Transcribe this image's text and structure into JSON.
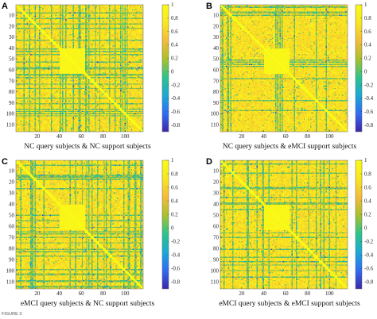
{
  "figure_label": "FIGURE 3",
  "colors": {
    "colormap": [
      "#3e26a8",
      "#2f6cf4",
      "#1aa9d6",
      "#2bc48a",
      "#a8c12b",
      "#f4bb38",
      "#f8e720",
      "#f9fb15"
    ],
    "tick": "#333333"
  },
  "chart_data": [
    {
      "type": "heatmap",
      "panel": "A",
      "title": "NC query subjects & NC support subjects",
      "xticks": [
        20,
        40,
        60,
        80,
        100
      ],
      "yticks": [
        10,
        20,
        30,
        40,
        50,
        60,
        70,
        80,
        90,
        100,
        110
      ],
      "matrix_size": 116,
      "colorbar_ticks": [
        1,
        0.8,
        0.6,
        0.4,
        0.2,
        0,
        -0.2,
        -0.4,
        -0.6,
        -0.8
      ],
      "value_range": [
        -0.9,
        1
      ]
    },
    {
      "type": "heatmap",
      "panel": "B",
      "title": "NC query subjects & eMCI support subjects",
      "xticks": [
        20,
        40,
        60,
        80,
        100
      ],
      "yticks": [
        10,
        20,
        30,
        40,
        50,
        60,
        70,
        80,
        90,
        100,
        110
      ],
      "matrix_size": 116,
      "colorbar_ticks": [
        1,
        0.8,
        0.6,
        0.4,
        0.2,
        0,
        -0.2,
        -0.4,
        -0.6,
        -0.8
      ],
      "value_range": [
        -0.9,
        1
      ]
    },
    {
      "type": "heatmap",
      "panel": "C",
      "title": "eMCI query subjects & NC support subjects",
      "xticks": [
        20,
        40,
        60,
        80,
        100
      ],
      "yticks": [
        10,
        20,
        30,
        40,
        50,
        60,
        70,
        80,
        90,
        100,
        110
      ],
      "matrix_size": 116,
      "colorbar_ticks": [
        1,
        0.8,
        0.6,
        0.4,
        0.2,
        0,
        -0.2,
        -0.4,
        -0.6,
        -0.8
      ],
      "value_range": [
        -0.9,
        1
      ]
    },
    {
      "type": "heatmap",
      "panel": "D",
      "title": "eMCI query subjects & eMCI support subjects",
      "xticks": [
        20,
        40,
        60,
        80,
        100
      ],
      "yticks": [
        10,
        20,
        30,
        40,
        50,
        60,
        70,
        80,
        90,
        100,
        110
      ],
      "matrix_size": 116,
      "colorbar_ticks": [
        1,
        0.8,
        0.6,
        0.4,
        0.2,
        0,
        -0.2,
        -0.4,
        -0.6,
        -0.8
      ],
      "value_range": [
        -0.9,
        1
      ]
    }
  ]
}
